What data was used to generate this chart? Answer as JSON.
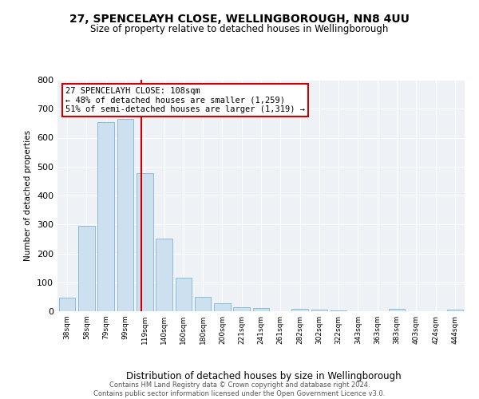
{
  "title1": "27, SPENCELAYH CLOSE, WELLINGBOROUGH, NN8 4UU",
  "title2": "Size of property relative to detached houses in Wellingborough",
  "xlabel": "Distribution of detached houses by size in Wellingborough",
  "ylabel": "Number of detached properties",
  "categories": [
    "38sqm",
    "58sqm",
    "79sqm",
    "99sqm",
    "119sqm",
    "140sqm",
    "160sqm",
    "180sqm",
    "200sqm",
    "221sqm",
    "241sqm",
    "261sqm",
    "282sqm",
    "302sqm",
    "322sqm",
    "343sqm",
    "363sqm",
    "383sqm",
    "403sqm",
    "424sqm",
    "444sqm"
  ],
  "values": [
    48,
    295,
    653,
    665,
    478,
    250,
    115,
    50,
    27,
    15,
    12,
    0,
    7,
    5,
    3,
    0,
    0,
    7,
    0,
    0,
    5
  ],
  "bar_color": "#cde0ef",
  "bar_edge_color": "#8bbdd9",
  "vline_x_index": 3.82,
  "vline_color": "#cc0000",
  "annotation_line1": "27 SPENCELAYH CLOSE: 108sqm",
  "annotation_line2": "← 48% of detached houses are smaller (1,259)",
  "annotation_line3": "51% of semi-detached houses are larger (1,319) →",
  "annotation_box_color": "#ffffff",
  "annotation_box_edge": "#cc0000",
  "ylim": [
    0,
    800
  ],
  "yticks": [
    0,
    100,
    200,
    300,
    400,
    500,
    600,
    700,
    800
  ],
  "footer_text": "Contains HM Land Registry data © Crown copyright and database right 2024.\nContains public sector information licensed under the Open Government Licence v3.0.",
  "bg_color": "#ffffff",
  "plot_bg_color": "#eef2f7"
}
